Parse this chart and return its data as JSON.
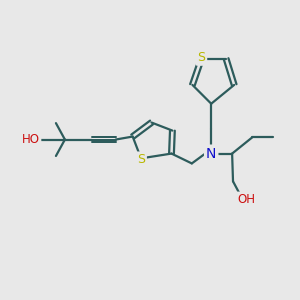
{
  "bg_color": "#e8e8e8",
  "bond_color": "#2d5c5c",
  "bond_lw": 1.6,
  "s_color": "#b8b800",
  "n_color": "#1010cc",
  "o_color": "#cc1010",
  "figsize": [
    3.0,
    3.0
  ],
  "dpi": 100,
  "xlim": [
    0,
    10
  ],
  "ylim": [
    0,
    10
  ]
}
